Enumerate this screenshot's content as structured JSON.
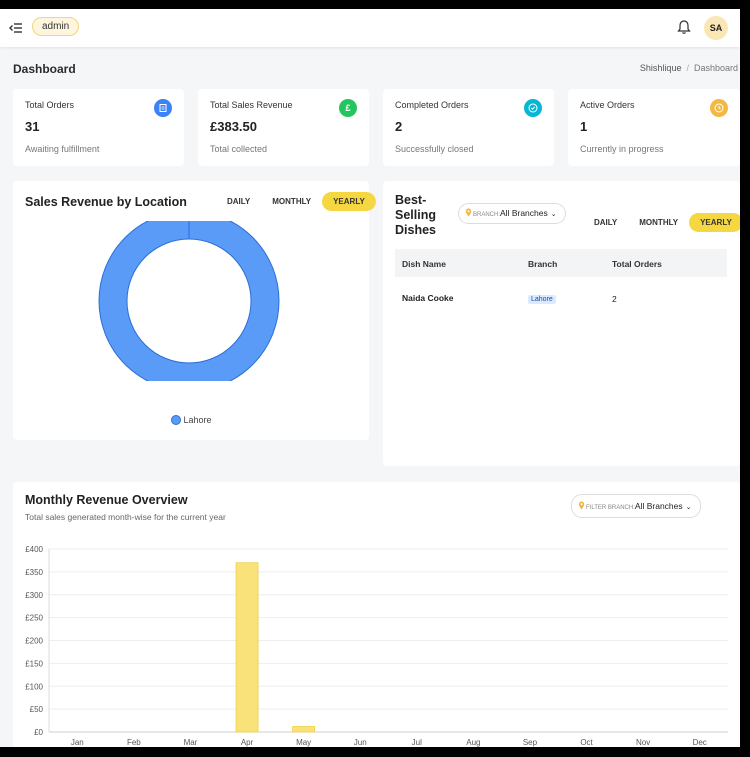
{
  "header": {
    "role_badge": "admin",
    "avatar_initials": "SA",
    "menu_icon": "collapse-menu-icon",
    "bell_icon": "bell-icon"
  },
  "page": {
    "title": "Dashboard",
    "breadcrumb": [
      "Shishlique",
      "Dashboard"
    ]
  },
  "stats": [
    {
      "label": "Total Orders",
      "value": "31",
      "sub": "Awaiting fulfillment",
      "icon": "orders-icon",
      "color": "#3b82f6"
    },
    {
      "label": "Total Sales Revenue",
      "value": "£383.50",
      "sub": "Total collected",
      "icon": "pound-icon",
      "color": "#22c55e"
    },
    {
      "label": "Completed Orders",
      "value": "2",
      "sub": "Successfully closed",
      "icon": "check-circle-icon",
      "color": "#06b6d4"
    },
    {
      "label": "Active Orders",
      "value": "1",
      "sub": "Currently in progress",
      "icon": "clock-icon",
      "color": "#f4b740"
    }
  ],
  "sales_by_location": {
    "title": "Sales Revenue by Location",
    "periods": [
      "DAILY",
      "MONTHLY",
      "YEARLY"
    ],
    "active_period": "YEARLY",
    "legend": [
      "Lahore"
    ],
    "color": "#5b9bf8"
  },
  "best_selling": {
    "title_lines": [
      "Best-",
      "Selling",
      "Dishes"
    ],
    "branch_prefix": "BRANCH:",
    "branch_value": "All Branches",
    "periods": [
      "DAILY",
      "MONTHLY",
      "YEARLY"
    ],
    "active_period": "YEARLY",
    "columns": [
      "Dish Name",
      "Branch",
      "Total Orders"
    ],
    "rows": [
      {
        "dish": "Naida Cooke",
        "branch": "Lahore",
        "orders": "2"
      }
    ]
  },
  "monthly_overview": {
    "title": "Monthly Revenue Overview",
    "subtitle": "Total sales generated month-wise for the current year",
    "filter_prefix": "FILTER BRANCH:",
    "filter_value": "All Branches"
  },
  "chart_data": {
    "type": "bar",
    "categories": [
      "Jan",
      "Feb",
      "Mar",
      "Apr",
      "May",
      "Jun",
      "Jul",
      "Aug",
      "Sep",
      "Oct",
      "Nov",
      "Dec"
    ],
    "values": [
      0,
      0,
      0,
      370,
      12,
      0,
      0,
      0,
      0,
      0,
      0,
      0
    ],
    "ylim": [
      0,
      400
    ],
    "yticks": [
      0,
      50,
      100,
      150,
      200,
      250,
      300,
      350,
      400
    ],
    "ytick_labels": [
      "£0",
      "£50",
      "£100",
      "£150",
      "£200",
      "£250",
      "£300",
      "£350",
      "£400"
    ],
    "bar_color": "#f9e27a",
    "grid": true
  },
  "pie_data": {
    "type": "pie",
    "categories": [
      "Lahore"
    ],
    "values": [
      383.5
    ]
  }
}
